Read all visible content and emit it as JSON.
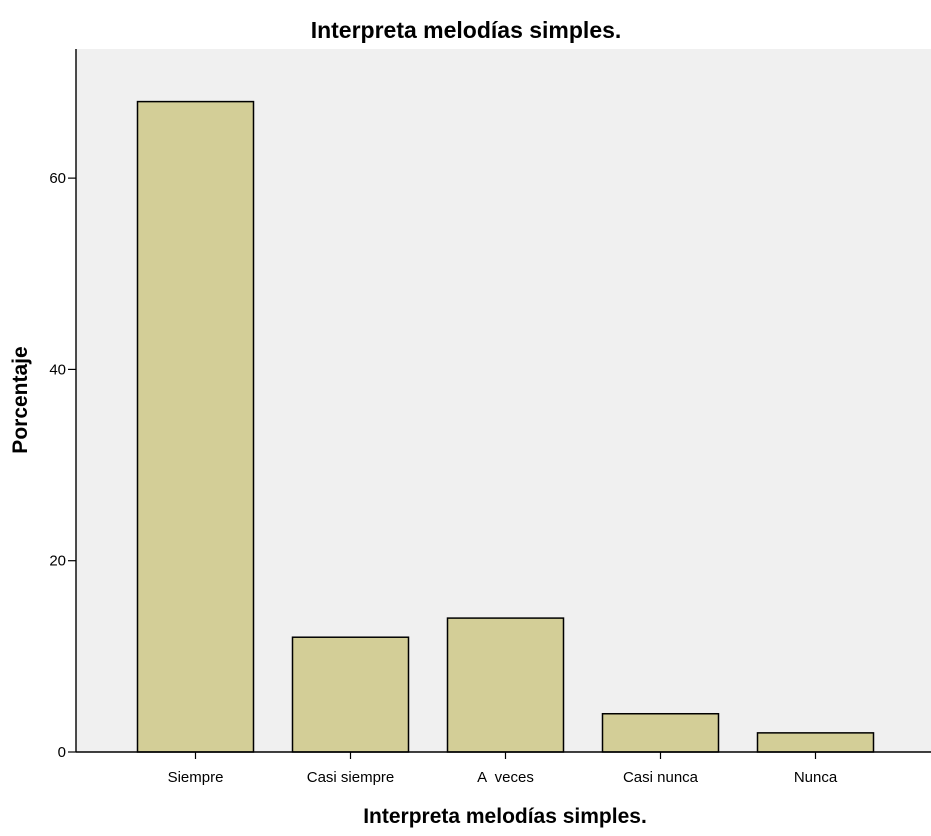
{
  "chart_data": {
    "type": "bar",
    "title": "Interpreta melodías simples.",
    "xlabel": "Interpreta melodías simples.",
    "ylabel": "Porcentaje",
    "categories": [
      "Siempre",
      "Casi siempre",
      "A  veces",
      "Casi nunca",
      "Nunca"
    ],
    "values": [
      68,
      12,
      14,
      4,
      2
    ],
    "ylim": [
      0,
      73.5
    ],
    "yticks": [
      0,
      20,
      40,
      60
    ],
    "grid": false,
    "legend": "none"
  },
  "colors": {
    "plot_background": "#f0f0f0",
    "bar_fill": "#d3ce97",
    "bar_stroke": "#000000",
    "axis": "#000000"
  }
}
